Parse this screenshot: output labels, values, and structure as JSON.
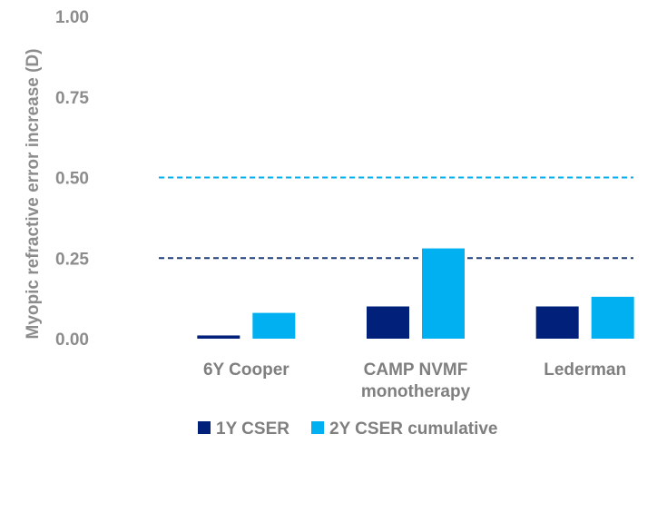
{
  "chart_data": {
    "type": "bar",
    "title": "",
    "xlabel": "",
    "ylabel": "Myopic refractive error increase (D)",
    "ylim": [
      0,
      1.0
    ],
    "yticks": [
      "0.00",
      "0.25",
      "0.50",
      "0.75",
      "1.00"
    ],
    "ytick_values": [
      0,
      0.25,
      0.5,
      0.75,
      1.0
    ],
    "grid": false,
    "categories": [
      [
        "6Y Cooper"
      ],
      [
        "CAMP NVMF",
        "monotherapy"
      ],
      [
        "Lederman"
      ]
    ],
    "series": [
      {
        "name": "1Y CSER",
        "color": "#00207a",
        "values": [
          0.01,
          0.1,
          0.1
        ]
      },
      {
        "name": "2Y CSER cumulative",
        "color": "#00b0f0",
        "values": [
          0.08,
          0.28,
          0.13
        ]
      }
    ],
    "reference_lines": [
      {
        "value": 0.5,
        "color": "#00b0f0",
        "style": "dashed"
      },
      {
        "value": 0.25,
        "color": "#1f3d7a",
        "style": "dashed"
      }
    ],
    "legend_position": "bottom"
  }
}
